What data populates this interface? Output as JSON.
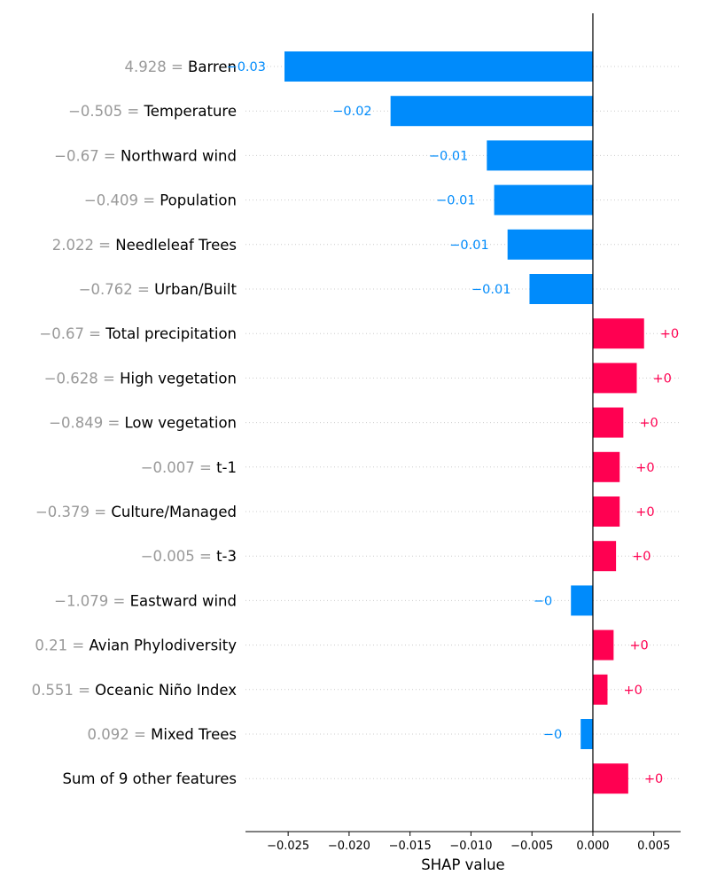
{
  "chart_data": {
    "type": "bar",
    "orientation": "horizontal",
    "xlabel": "SHAP value",
    "xlim": [
      -0.0285,
      0.0072
    ],
    "xticks": [
      -0.025,
      -0.02,
      -0.015,
      -0.01,
      -0.005,
      0.0,
      0.005
    ],
    "xtick_labels": [
      "−0.025",
      "−0.020",
      "−0.015",
      "−0.010",
      "−0.005",
      "0.000",
      "0.005"
    ],
    "grid": "dotted horizontal row lines",
    "colors": {
      "positive": "#ff0051",
      "negative": "#008bfb",
      "feature_value": "#999999",
      "feature_name": "#000000"
    },
    "rows": [
      {
        "feature_value": "4.928 = ",
        "feature": "Barren",
        "shap": -0.0253,
        "label": "−0.03"
      },
      {
        "feature_value": "−0.505 = ",
        "feature": "Temperature",
        "shap": -0.0166,
        "label": "−0.02"
      },
      {
        "feature_value": "−0.67 = ",
        "feature": "Northward wind",
        "shap": -0.0087,
        "label": "−0.01"
      },
      {
        "feature_value": "−0.409 = ",
        "feature": "Population",
        "shap": -0.0081,
        "label": "−0.01"
      },
      {
        "feature_value": "2.022 = ",
        "feature": "Needleleaf Trees",
        "shap": -0.007,
        "label": "−0.01"
      },
      {
        "feature_value": "−0.762 = ",
        "feature": "Urban/Built",
        "shap": -0.0052,
        "label": "−0.01"
      },
      {
        "feature_value": "−0.67 = ",
        "feature": "Total precipitation",
        "shap": 0.0042,
        "label": "+0"
      },
      {
        "feature_value": "−0.628 = ",
        "feature": "High vegetation",
        "shap": 0.0036,
        "label": "+0"
      },
      {
        "feature_value": "−0.849 = ",
        "feature": "Low vegetation",
        "shap": 0.0025,
        "label": "+0"
      },
      {
        "feature_value": "−0.007 = ",
        "feature": "t-1",
        "shap": 0.0022,
        "label": "+0"
      },
      {
        "feature_value": "−0.379 = ",
        "feature": "Culture/Managed",
        "shap": 0.0022,
        "label": "+0"
      },
      {
        "feature_value": "−0.005 = ",
        "feature": "t-3",
        "shap": 0.0019,
        "label": "+0"
      },
      {
        "feature_value": "−1.079 = ",
        "feature": "Eastward wind",
        "shap": -0.0018,
        "label": "−0"
      },
      {
        "feature_value": "0.21 = ",
        "feature": "Avian Phylodiversity",
        "shap": 0.0017,
        "label": "+0"
      },
      {
        "feature_value": "0.551 = ",
        "feature": "Oceanic Niño Index",
        "shap": 0.0012,
        "label": "+0"
      },
      {
        "feature_value": "0.092 = ",
        "feature": "Mixed Trees",
        "shap": -0.001,
        "label": "−0"
      },
      {
        "feature_value": "",
        "feature": "Sum of 9 other features",
        "shap": 0.0029,
        "label": "+0"
      }
    ]
  }
}
